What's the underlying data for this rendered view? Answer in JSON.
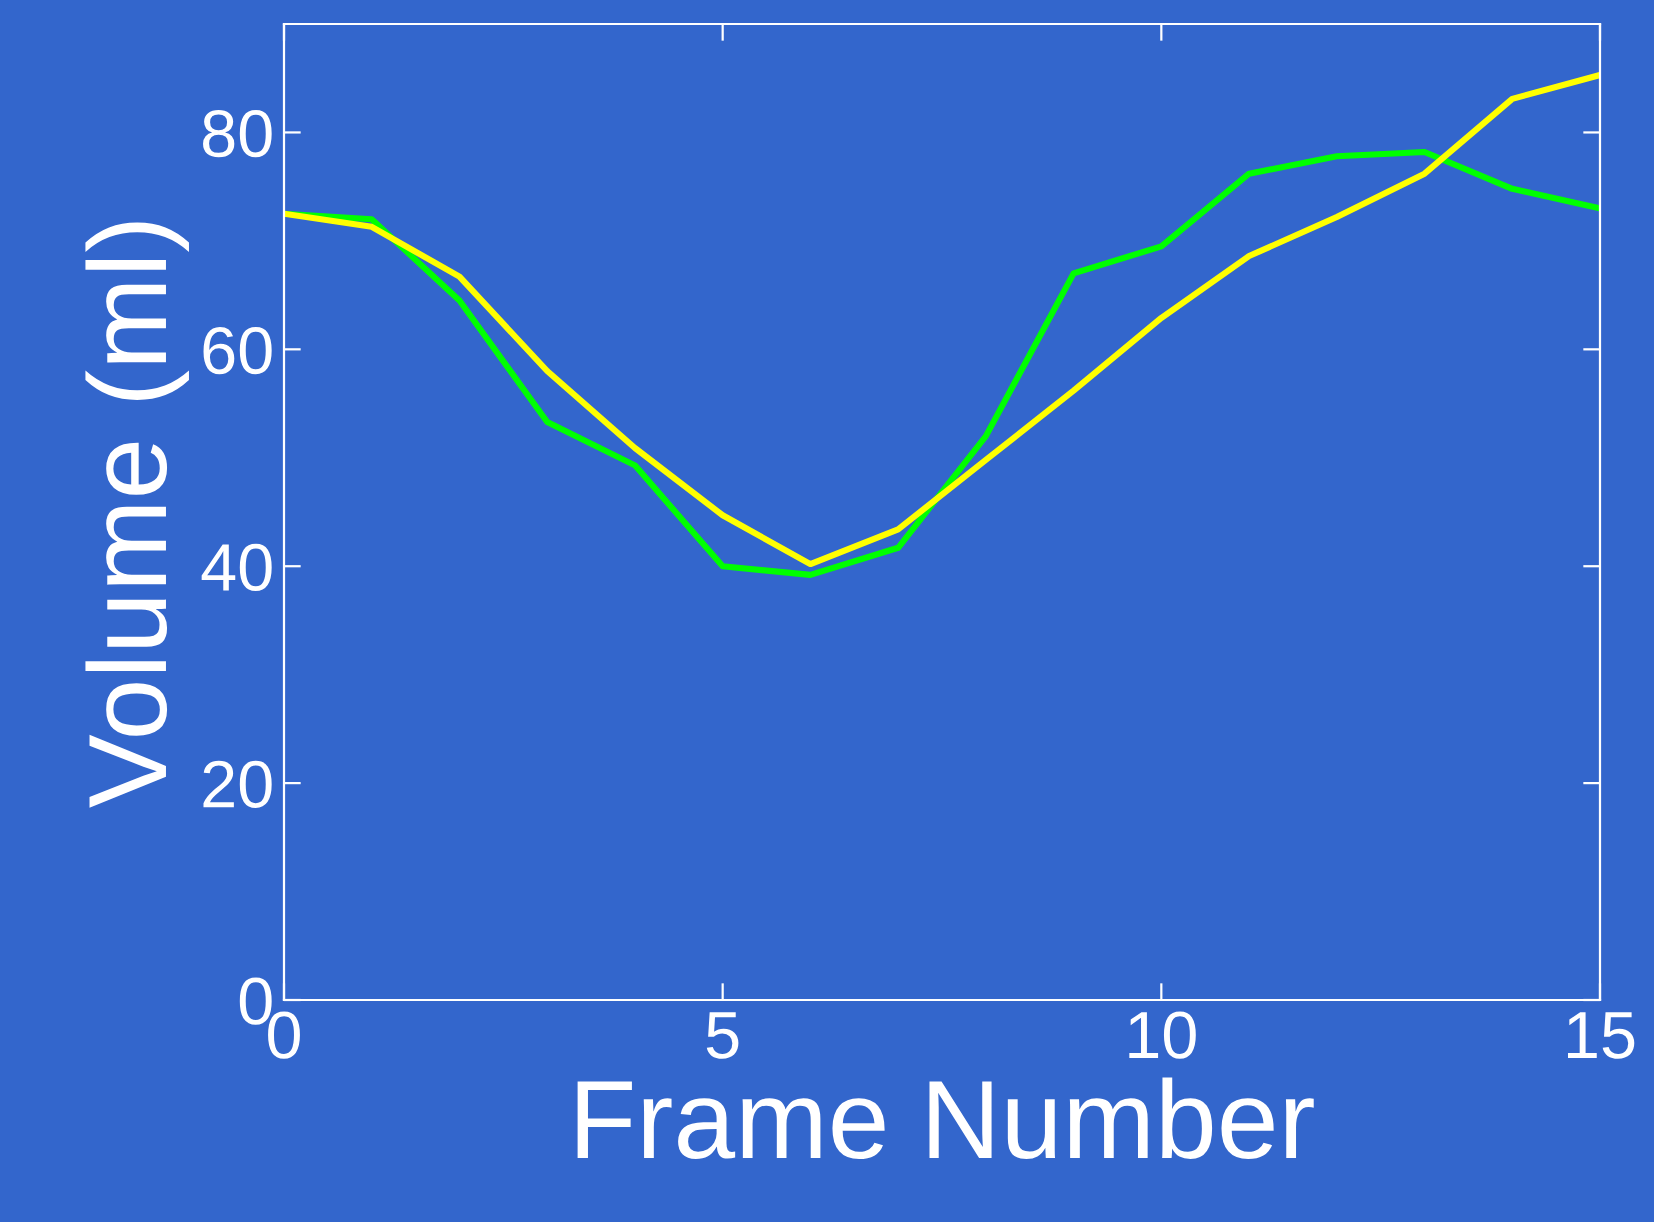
{
  "chart_data": {
    "type": "line",
    "xlabel": "Frame Number",
    "ylabel": "Volume (ml)",
    "x": [
      0,
      1,
      2,
      3,
      4,
      5,
      6,
      7,
      8,
      9,
      10,
      11,
      12,
      13,
      14,
      15
    ],
    "series": [
      {
        "color": "#00ff00",
        "values": [
          72.5,
          72,
          64.5,
          53.3,
          49.3,
          40,
          39.2,
          41.7,
          52,
          67,
          69.5,
          76.2,
          77.8,
          78.2,
          74.8,
          73
        ]
      },
      {
        "color": "#ffff00",
        "values": [
          72.5,
          71.3,
          66.7,
          58,
          50.9,
          44.7,
          40.2,
          43.4,
          49.8,
          56.2,
          62.9,
          68.6,
          72.2,
          76.2,
          83.1,
          85.3
        ]
      }
    ],
    "xlim": [
      0,
      15
    ],
    "xticks": [
      0,
      5,
      10,
      15
    ],
    "ylim": [
      0,
      90
    ],
    "yticks": [
      0,
      20,
      40,
      60,
      80
    ],
    "marker": "none",
    "line_style": "solid"
  }
}
